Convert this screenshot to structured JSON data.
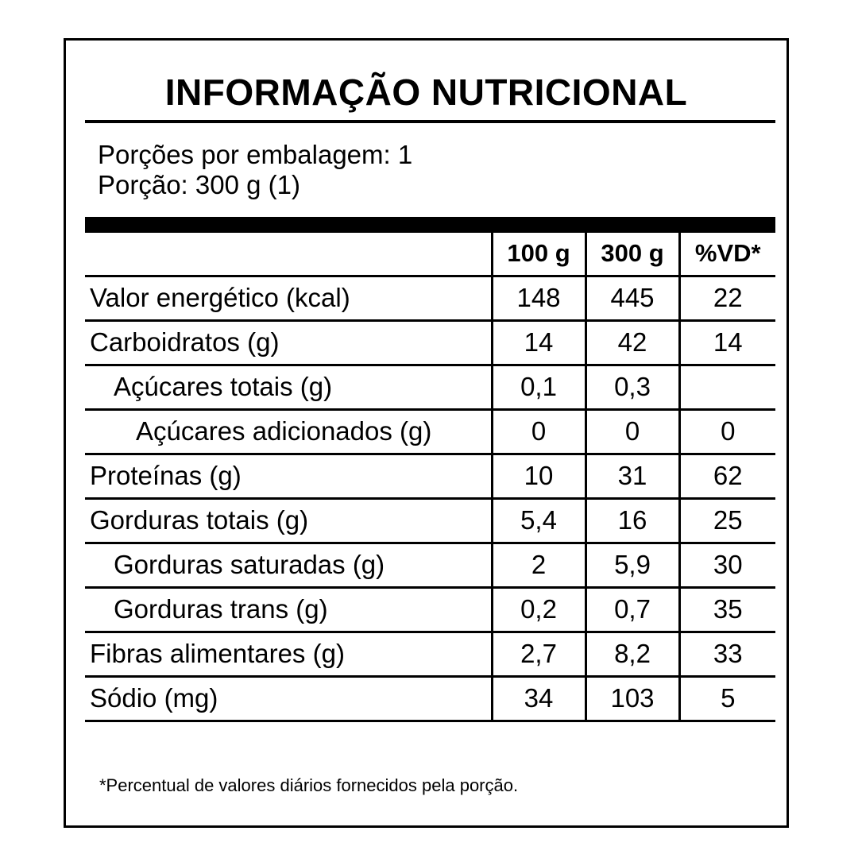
{
  "title": "INFORMAÇÃO NUTRICIONAL",
  "servings_per_package": "Porções por embalagem: 1",
  "serving_size": "Porção: 300 g (1)",
  "columns": [
    "",
    "100 g",
    "300 g",
    "%VD*"
  ],
  "rows": [
    {
      "label": "Valor energético (kcal)",
      "indent": 0,
      "per100": "148",
      "perServing": "445",
      "dv": "22"
    },
    {
      "label": "Carboidratos (g)",
      "indent": 0,
      "per100": "14",
      "perServing": "42",
      "dv": "14"
    },
    {
      "label": "Açúcares totais (g)",
      "indent": 1,
      "per100": "0,1",
      "perServing": "0,3",
      "dv": ""
    },
    {
      "label": "Açúcares adicionados (g)",
      "indent": 2,
      "per100": "0",
      "perServing": "0",
      "dv": "0"
    },
    {
      "label": "Proteínas (g)",
      "indent": 0,
      "per100": "10",
      "perServing": "31",
      "dv": "62"
    },
    {
      "label": "Gorduras totais (g)",
      "indent": 0,
      "per100": "5,4",
      "perServing": "16",
      "dv": "25"
    },
    {
      "label": "Gorduras saturadas (g)",
      "indent": 1,
      "per100": "2",
      "perServing": "5,9",
      "dv": "30"
    },
    {
      "label": "Gorduras trans (g)",
      "indent": 1,
      "per100": "0,2",
      "perServing": "0,7",
      "dv": "35"
    },
    {
      "label": "Fibras alimentares (g)",
      "indent": 0,
      "per100": "2,7",
      "perServing": "8,2",
      "dv": "33"
    },
    {
      "label": "Sódio (mg)",
      "indent": 0,
      "per100": "34",
      "perServing": "103",
      "dv": "5"
    }
  ],
  "footnote": "*Percentual de valores diários fornecidos pela porção."
}
